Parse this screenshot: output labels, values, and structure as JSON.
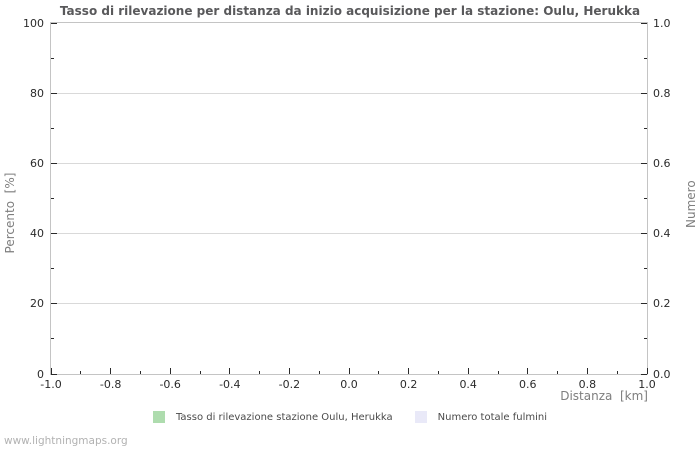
{
  "page": {
    "watermark": "www.lightningmaps.org"
  },
  "chart_data": {
    "type": "line",
    "title": "Tasso di rilevazione per distanza da inizio acquisizione per la stazione: Oulu, Herukka",
    "x_axis": {
      "label": "Distanza  [km]",
      "min": -1.0,
      "max": 1.0,
      "tick_labels": [
        "-1.0",
        "-0.8",
        "-0.6",
        "-0.4",
        "-0.2",
        "0.0",
        "0.2",
        "0.4",
        "0.6",
        "0.8",
        "1.0"
      ]
    },
    "y_axis_left": {
      "label": "Percento  [%]",
      "min": 0,
      "max": 100,
      "tick_labels": [
        "0",
        "20",
        "40",
        "60",
        "80",
        "100"
      ]
    },
    "y_axis_right": {
      "label": "Numero",
      "min": 0.0,
      "max": 1.0,
      "tick_labels": [
        "0.0",
        "0.2",
        "0.4",
        "0.6",
        "0.8",
        "1.0"
      ]
    },
    "grid": "horizontal-major-only",
    "legend": {
      "position": "bottom",
      "entries": [
        {
          "label": "Tasso di rilevazione stazione Oulu, Herukka",
          "color": "#aedcae"
        },
        {
          "label": "Numero totale fulmini",
          "color": "#e9e9f8"
        }
      ]
    },
    "series": [
      {
        "name": "Tasso di rilevazione stazione Oulu, Herukka",
        "axis": "left",
        "x": [],
        "values": []
      },
      {
        "name": "Numero totale fulmini",
        "axis": "right",
        "x": [],
        "values": []
      }
    ]
  }
}
